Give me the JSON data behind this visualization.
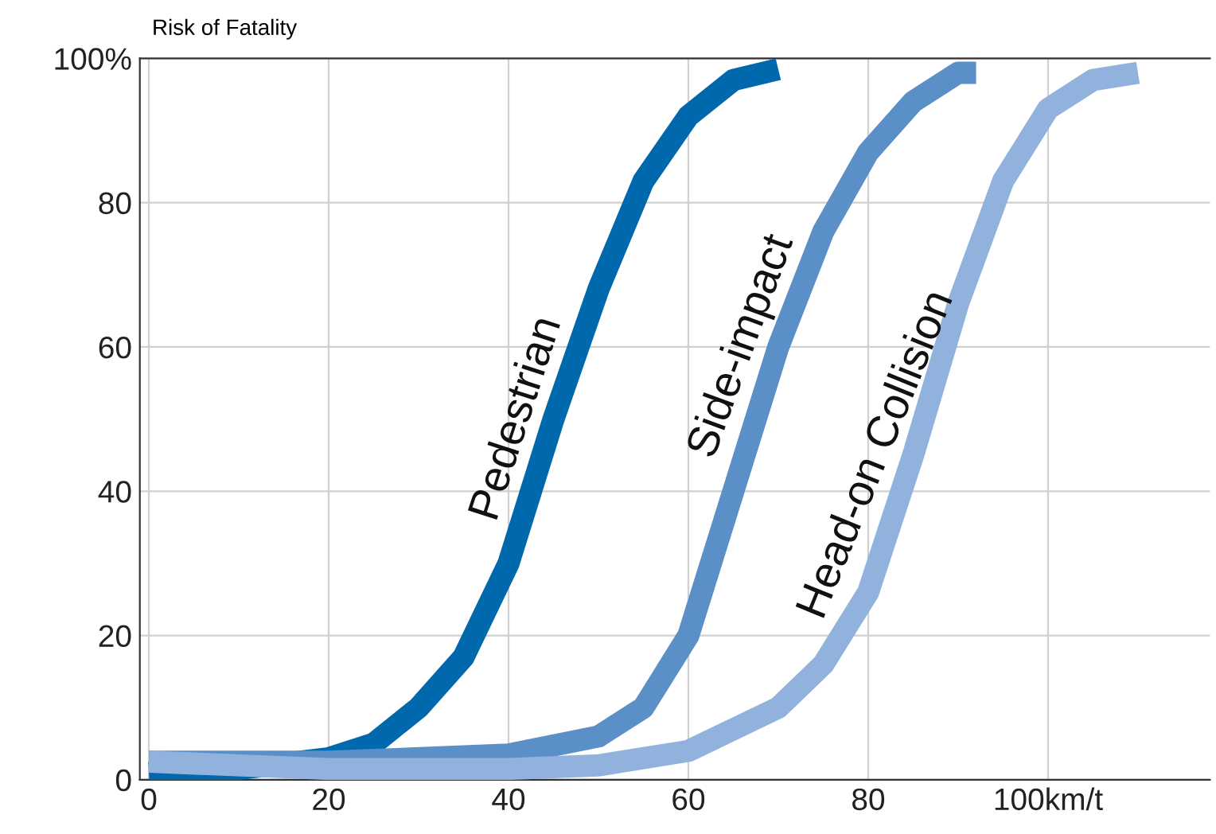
{
  "chart_data": {
    "type": "line",
    "ylabel": "Risk of Fatality",
    "series": [
      {
        "name": "Pedestrian",
        "color": "#0068ad",
        "x": [
          0,
          10,
          20,
          25,
          30,
          35,
          40,
          45,
          50,
          55,
          60,
          65,
          70
        ],
        "values": [
          1,
          1.5,
          3,
          5,
          10,
          17,
          30,
          50,
          68,
          83,
          92,
          97,
          98.5
        ]
      },
      {
        "name": "Side-impact",
        "color": "#5b8fc7",
        "x": [
          0,
          20,
          40,
          50,
          55,
          60,
          65,
          70,
          75,
          80,
          85,
          90,
          92
        ],
        "values": [
          2.5,
          2.5,
          3.5,
          6,
          10,
          20,
          40,
          60,
          76,
          87,
          94,
          98,
          98
        ]
      },
      {
        "name": "Head-on Collision",
        "color": "#91b2dc",
        "x": [
          0,
          20,
          40,
          50,
          60,
          70,
          75,
          80,
          85,
          90,
          95,
          100,
          105,
          110
        ],
        "values": [
          2.5,
          1.5,
          1.5,
          2,
          4,
          10,
          16,
          26,
          45,
          66,
          83,
          93,
          97,
          98
        ]
      }
    ],
    "xlim": [
      -1,
      118
    ],
    "ylim": [
      0,
      100
    ],
    "xticks": [
      0,
      20,
      40,
      60,
      80,
      {
        "value": 100,
        "label": "100km/t"
      }
    ],
    "yticks": [
      0,
      20,
      40,
      60,
      80,
      {
        "value": 100,
        "label": "100%"
      }
    ],
    "grid": true,
    "legend": false,
    "marker": "none",
    "line_style": "solid"
  }
}
